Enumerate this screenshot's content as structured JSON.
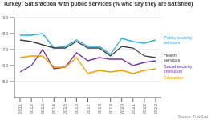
{
  "chart_data": {
    "type": "line",
    "title": "Turkey: Satisfaction with public services (% who say they are satisfied)",
    "annotations": [
      "Source: TurkStat"
    ],
    "x": [
      2011,
      2012,
      2013,
      2014,
      2015,
      2016,
      2017,
      2018,
      2019,
      2020,
      2021,
      2022,
      2023
    ],
    "xlim": [
      2010.5,
      2023.5
    ],
    "xticks": [
      2011,
      2012,
      2013,
      2014,
      2015,
      2016,
      2017,
      2018,
      2019,
      2020,
      2021,
      2022,
      2023
    ],
    "ylim": [
      40,
      90
    ],
    "yticks": [
      50,
      60,
      70,
      80,
      90
    ],
    "grid": true,
    "series": [
      {
        "name": "Public security\nservices",
        "color": "#29abe2",
        "values": [
          79,
          79,
          80,
          71,
          72,
          76,
          72,
          72,
          67,
          77,
          75,
          74,
          76
        ]
      },
      {
        "name": "Health\nservices",
        "color": "#404040",
        "values": [
          76,
          75,
          73,
          71,
          71,
          75,
          71,
          71,
          66,
          72,
          71,
          66,
          65
        ]
      },
      {
        "name": "Social security\ninstitution",
        "color": "#7030a0",
        "values": [
          56,
          60,
          70,
          58,
          59,
          68,
          63,
          65,
          64,
          64,
          60,
          62,
          63
        ]
      },
      {
        "name": "Education",
        "color": "#f59c00",
        "values": [
          65,
          66,
          66,
          59,
          59,
          65,
          55,
          57,
          56,
          57,
          55,
          57,
          58
        ]
      }
    ]
  }
}
